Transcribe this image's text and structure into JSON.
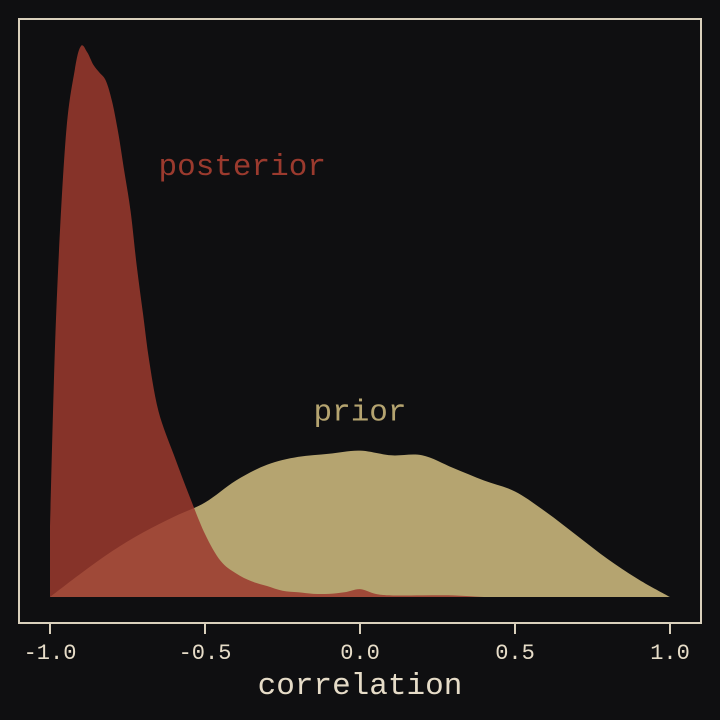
{
  "colors": {
    "background": "#0f0f11",
    "frame": "#d9d0bc",
    "tick_text": "#e6dcc8",
    "prior": "#b5a470",
    "posterior": "#9b3a2e"
  },
  "chart_data": {
    "type": "area",
    "title": "",
    "xlabel": "correlation",
    "ylabel": "",
    "xlim": [
      -1.0,
      1.0
    ],
    "ylim": [
      0,
      3.5
    ],
    "y_axis_visible": false,
    "grid": false,
    "x_ticks": [
      -1.0,
      -0.5,
      0.0,
      0.5,
      1.0
    ],
    "x_tick_labels": [
      "-1.0",
      "-0.5",
      "0.0",
      "0.5",
      "1.0"
    ],
    "series": [
      {
        "name": "prior",
        "label_position": [
          0.0,
          1.12
        ],
        "x": [
          -1.0,
          -0.9,
          -0.8,
          -0.7,
          -0.6,
          -0.5,
          -0.4,
          -0.3,
          -0.2,
          -0.1,
          0.0,
          0.1,
          0.2,
          0.3,
          0.4,
          0.5,
          0.6,
          0.7,
          0.8,
          0.9,
          1.0
        ],
        "y": [
          0.0,
          0.15,
          0.29,
          0.41,
          0.51,
          0.6,
          0.74,
          0.84,
          0.89,
          0.91,
          0.93,
          0.9,
          0.9,
          0.82,
          0.74,
          0.67,
          0.54,
          0.39,
          0.24,
          0.11,
          0.0
        ]
      },
      {
        "name": "posterior",
        "label_position": [
          -0.65,
          2.68
        ],
        "x": [
          -1.0,
          -0.98,
          -0.95,
          -0.92,
          -0.9,
          -0.88,
          -0.86,
          -0.84,
          -0.82,
          -0.8,
          -0.78,
          -0.76,
          -0.74,
          -0.72,
          -0.7,
          -0.68,
          -0.65,
          -0.6,
          -0.55,
          -0.5,
          -0.45,
          -0.4,
          -0.35,
          -0.3,
          -0.25,
          -0.2,
          -0.15,
          -0.1,
          -0.05,
          0.0,
          0.05,
          0.1,
          0.2,
          0.3,
          0.4,
          0.5
        ],
        "y": [
          0.45,
          1.8,
          2.9,
          3.35,
          3.5,
          3.46,
          3.38,
          3.33,
          3.28,
          3.15,
          2.95,
          2.7,
          2.45,
          2.1,
          1.8,
          1.5,
          1.18,
          0.9,
          0.64,
          0.4,
          0.23,
          0.15,
          0.1,
          0.07,
          0.04,
          0.03,
          0.02,
          0.02,
          0.03,
          0.05,
          0.02,
          0.01,
          0.01,
          0.01,
          0.0,
          0.0
        ]
      }
    ]
  }
}
